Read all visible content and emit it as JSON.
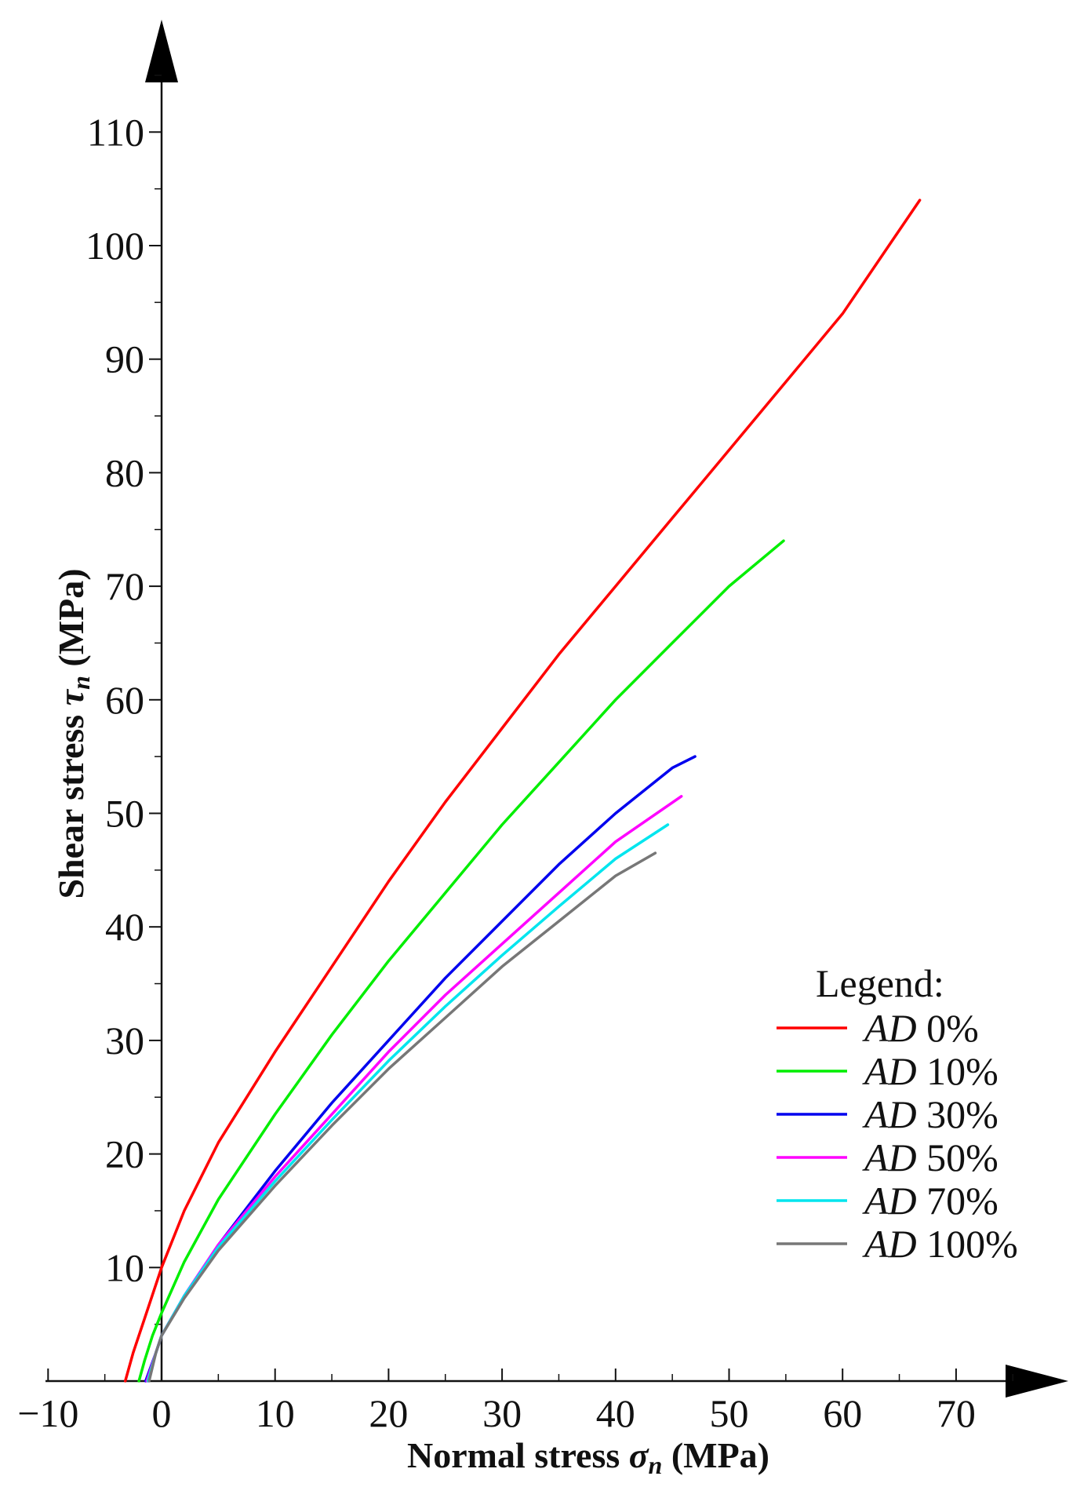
{
  "chart_data": {
    "type": "line",
    "xlabel": "Normal stress",
    "xlabel_symbol": "σ",
    "xlabel_sub": "n",
    "xlabel_unit": "(MPa)",
    "ylabel": "Shear stress",
    "ylabel_symbol": "τ",
    "ylabel_sub": "n",
    "ylabel_unit": "(MPa)",
    "xlim": [
      -10,
      80
    ],
    "ylim": [
      0,
      120
    ],
    "x_ticks": [
      -10,
      0,
      10,
      20,
      30,
      40,
      50,
      60,
      70
    ],
    "x_tick_labels": [
      "−10",
      "0",
      "10",
      "20",
      "30",
      "40",
      "50",
      "60",
      "70"
    ],
    "y_ticks": [
      10,
      20,
      30,
      40,
      50,
      60,
      70,
      80,
      90,
      100,
      110
    ],
    "y_tick_labels": [
      "10",
      "20",
      "30",
      "40",
      "50",
      "60",
      "70",
      "80",
      "90",
      "100",
      "110"
    ],
    "grid": false,
    "legend_title": "Legend:",
    "legend_position": "right",
    "series": [
      {
        "name": "0%",
        "prefix": "AD",
        "color": "#ff0000",
        "x": [
          -3.2,
          -2.5,
          -1.5,
          0,
          2,
          5,
          10,
          15,
          20,
          25,
          30,
          35,
          40,
          45,
          50,
          55,
          60,
          66.8
        ],
        "y": [
          0,
          2.5,
          5.5,
          10,
          15,
          21,
          29,
          36.5,
          44,
          51,
          57.5,
          64,
          70,
          76,
          82,
          88,
          94,
          104
        ]
      },
      {
        "name": "10%",
        "prefix": "AD",
        "color": "#00ee00",
        "x": [
          -2,
          -1.5,
          -0.8,
          0,
          2,
          5,
          10,
          15,
          20,
          25,
          30,
          35,
          40,
          45,
          50,
          54.8
        ],
        "y": [
          0,
          1.8,
          4,
          6,
          10.5,
          16,
          23.5,
          30.5,
          37,
          43,
          49,
          54.5,
          60,
          65,
          70,
          74
        ]
      },
      {
        "name": "30%",
        "prefix": "AD",
        "color": "#0000ee",
        "x": [
          -1.4,
          -0.5,
          0,
          2,
          5,
          10,
          15,
          20,
          25,
          30,
          35,
          40,
          45,
          47
        ],
        "y": [
          0,
          2.5,
          4,
          7.5,
          12,
          18.5,
          24.5,
          30,
          35.5,
          40.5,
          45.5,
          50,
          54,
          55
        ]
      },
      {
        "name": "50%",
        "prefix": "AD",
        "color": "#ff00ff",
        "x": [
          -1.3,
          -0.5,
          0,
          2,
          5,
          10,
          15,
          20,
          25,
          30,
          35,
          40,
          45.8
        ],
        "y": [
          0,
          2.5,
          4,
          7.5,
          12,
          18,
          23.5,
          29,
          34,
          38.5,
          43,
          47.5,
          51.5
        ]
      },
      {
        "name": "70%",
        "prefix": "AD",
        "color": "#00e5ee",
        "x": [
          -1.2,
          -0.5,
          0,
          2,
          5,
          10,
          15,
          20,
          25,
          30,
          35,
          40,
          44.6
        ],
        "y": [
          0,
          2.5,
          4,
          7.5,
          11.8,
          17.6,
          23,
          28.2,
          33,
          37.5,
          41.8,
          46,
          49
        ]
      },
      {
        "name": "100%",
        "prefix": "AD",
        "color": "#777777",
        "x": [
          -1.1,
          -0.5,
          0,
          2,
          5,
          10,
          15,
          20,
          25,
          30,
          35,
          40,
          43.5
        ],
        "y": [
          0,
          2.5,
          4,
          7.3,
          11.5,
          17.2,
          22.5,
          27.5,
          32,
          36.5,
          40.5,
          44.5,
          46.5
        ]
      }
    ]
  }
}
